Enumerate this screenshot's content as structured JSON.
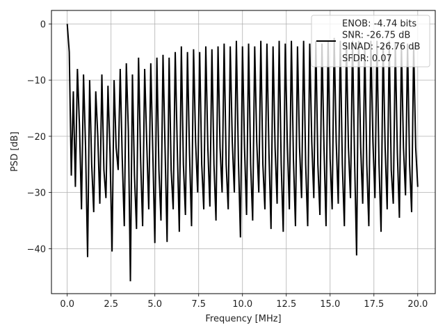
{
  "chart_data": {
    "type": "line",
    "xlabel": "Frequency [MHz]",
    "ylabel": "PSD [dB]",
    "xlim": [
      -0.9,
      21.0
    ],
    "ylim": [
      -48.0,
      2.4
    ],
    "xticks": [
      0.0,
      2.5,
      5.0,
      7.5,
      10.0,
      12.5,
      15.0,
      17.5,
      20.0
    ],
    "xtick_labels": [
      "0.0",
      "2.5",
      "5.0",
      "7.5",
      "10.0",
      "12.5",
      "15.0",
      "17.5",
      "20.0"
    ],
    "yticks": [
      0,
      -10,
      -20,
      -30,
      -40
    ],
    "ytick_labels": [
      "0",
      "−10",
      "−20",
      "−30",
      "−40"
    ],
    "grid": true,
    "legend_position": "top-right",
    "line_color": "#000000",
    "series": [
      {
        "name": "ENOB: -4.74 bits\nSNR: -26.75 dB\nSINAD: -26.76 dB\nSFDR: 0.07",
        "x_start": 0.0,
        "x_end": 20.0,
        "values": [
          0.0,
          -5.0,
          -27.0,
          -12.0,
          -29.0,
          -8.0,
          -18.0,
          -33.0,
          -9.0,
          -22.0,
          -41.5,
          -10.0,
          -25.0,
          -33.5,
          -12.0,
          -20.0,
          -32.0,
          -9.0,
          -26.0,
          -31.0,
          -11.0,
          -23.0,
          -40.5,
          -10.0,
          -22.0,
          -26.0,
          -8.0,
          -24.0,
          -36.0,
          -7.0,
          -19.0,
          -45.8,
          -9.0,
          -27.0,
          -36.5,
          -6.0,
          -24.0,
          -36.0,
          -8.0,
          -21.0,
          -33.0,
          -7.0,
          -23.0,
          -39.0,
          -6.0,
          -26.0,
          -35.0,
          -5.5,
          -22.0,
          -38.8,
          -6.0,
          -26.0,
          -33.0,
          -5.0,
          -22.0,
          -37.0,
          -4.0,
          -25.0,
          -34.0,
          -5.0,
          -23.0,
          -36.0,
          -4.5,
          -21.0,
          -30.0,
          -5.0,
          -25.0,
          -33.0,
          -4.0,
          -22.0,
          -32.5,
          -4.5,
          -25.0,
          -35.0,
          -4.0,
          -22.0,
          -30.0,
          -3.5,
          -25.0,
          -33.0,
          -4.0,
          -21.0,
          -30.0,
          -3.0,
          -24.0,
          -38.0,
          -4.0,
          -22.0,
          -34.0,
          -3.5,
          -25.0,
          -35.0,
          -4.0,
          -21.0,
          -30.0,
          -3.0,
          -25.0,
          -33.0,
          -3.5,
          -23.0,
          -36.5,
          -4.0,
          -22.0,
          -32.0,
          -3.0,
          -25.0,
          -37.0,
          -3.5,
          -21.0,
          -33.0,
          -3.0,
          -24.0,
          -36.0,
          -4.0,
          -22.0,
          -31.0,
          -3.0,
          -25.0,
          -36.0,
          -3.5,
          -21.0,
          -31.0,
          -3.0,
          -25.0,
          -34.0,
          -3.5,
          -22.0,
          -36.0,
          -3.0,
          -24.0,
          -33.0,
          -2.5,
          -21.0,
          -32.0,
          -3.0,
          -25.0,
          -36.0,
          -3.5,
          -22.0,
          -31.0,
          -3.0,
          -24.0,
          -41.2,
          -3.0,
          -22.0,
          -32.0,
          -3.5,
          -25.0,
          -36.0,
          -3.0,
          -21.0,
          -31.0,
          -3.0,
          -25.0,
          -37.0,
          -3.5,
          -22.0,
          -33.0,
          -3.0,
          -26.0,
          -32.0,
          -3.5,
          -23.0,
          -34.5,
          -4.0,
          -22.0,
          -30.5,
          -3.5,
          -25.0,
          -33.5,
          -4.0,
          -22.0,
          -29.0
        ]
      }
    ]
  }
}
